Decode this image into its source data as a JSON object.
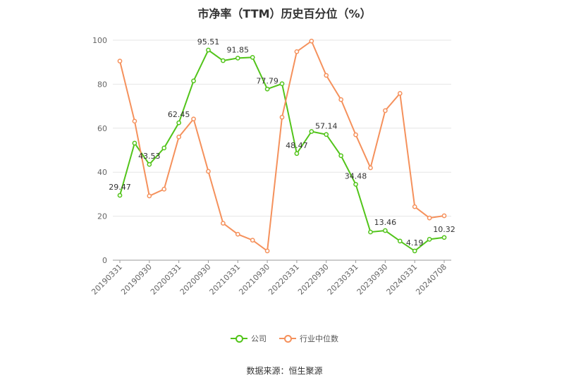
{
  "chart_data": {
    "type": "line",
    "title": "市净率（TTM）历史百分位（%）",
    "ylim": [
      0,
      100
    ],
    "yticks": [
      "0",
      "20",
      "40",
      "60",
      "80",
      "100"
    ],
    "x_tick_labels": [
      "20190331",
      "20190930",
      "20200331",
      "20200930",
      "20210331",
      "20210930",
      "20220331",
      "20220930",
      "20230331",
      "20230930",
      "20240331",
      "20240708"
    ],
    "x": [
      "20190331",
      "20190630",
      "20190930",
      "20191231",
      "20200331",
      "20200630",
      "20200930",
      "20201231",
      "20210331",
      "20210630",
      "20210930",
      "20211231",
      "20220331",
      "20220630",
      "20220930",
      "20221231",
      "20230331",
      "20230630",
      "20230930",
      "20231231",
      "20240331",
      "20240630",
      "20240708"
    ],
    "grid": true,
    "legend_position": "bottom",
    "series": [
      {
        "name": "公司",
        "color": "#52c41a",
        "values": [
          29.47,
          53.2,
          43.53,
          51.0,
          62.45,
          81.5,
          95.51,
          90.7,
          91.85,
          92.2,
          77.79,
          80.2,
          48.47,
          58.5,
          57.14,
          47.5,
          34.48,
          12.8,
          13.46,
          8.7,
          4.19,
          9.5,
          10.32
        ],
        "labels": {
          "0": "29.47",
          "2": "43.53",
          "4": "62.45",
          "6": "95.51",
          "8": "91.85",
          "10": "77.79",
          "12": "48.47",
          "14": "57.14",
          "16": "34.48",
          "18": "13.46",
          "20": "4.19",
          "22": "10.32"
        }
      },
      {
        "name": "行业中位数",
        "color": "#f5915c",
        "values": [
          90.5,
          63.2,
          29.2,
          32.3,
          56.0,
          64.2,
          40.4,
          16.8,
          11.8,
          9.1,
          4.2,
          65.0,
          94.8,
          99.6,
          84.0,
          73.0,
          57.0,
          42.0,
          68.0,
          75.8,
          24.3,
          19.2,
          20.2
        ],
        "labels": {}
      }
    ]
  },
  "source_text": "数据来源：恒生聚源"
}
